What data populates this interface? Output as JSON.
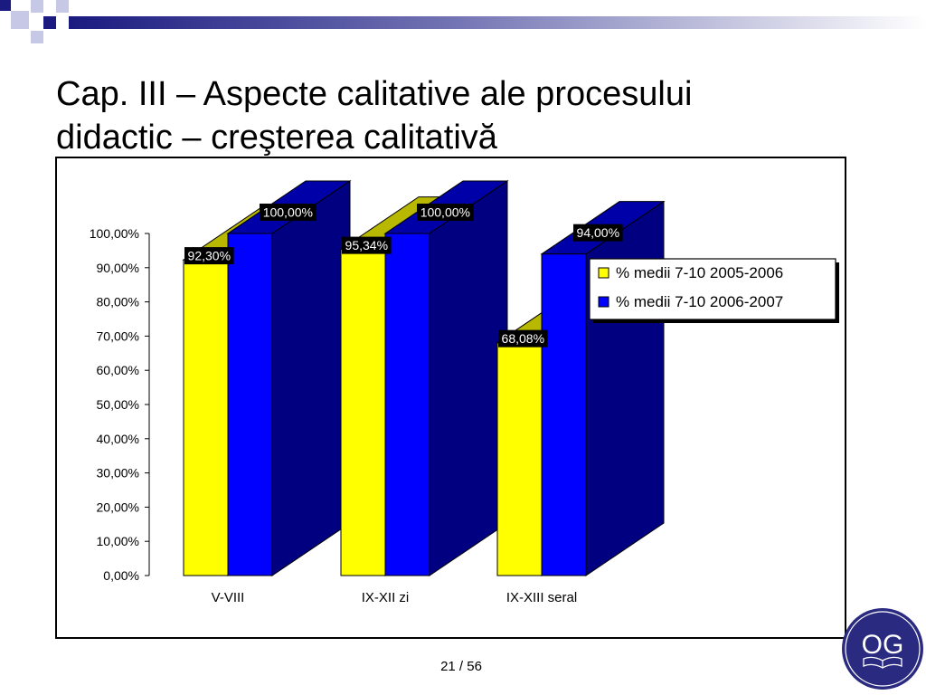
{
  "slide": {
    "title_line1": "Cap. III – Aspecte calitative ale procesului",
    "title_line2": "didactic – creşterea calitativă",
    "page_number": "21 / 56",
    "logo_text": "OG"
  },
  "colors": {
    "navy": "#1a1a80",
    "series1": "#ffff00",
    "series2": "#0000ff",
    "side": "#000080",
    "top1": "#b8b800",
    "top2": "#0000a8",
    "logo_bg": "#2a2b80"
  },
  "chart_data": {
    "type": "bar",
    "categories": [
      "V-VIII",
      "IX-XII zi",
      "IX-XIII seral"
    ],
    "series": [
      {
        "name": "% medii 7-10 2005-2006",
        "values": [
          92.3,
          95.34,
          68.08
        ],
        "labels": [
          "92,30%",
          "95,34%",
          "68,08%"
        ],
        "color": "#ffff00"
      },
      {
        "name": "% medii 7-10 2006-2007",
        "values": [
          100.0,
          100.0,
          94.0
        ],
        "labels": [
          "100,00%",
          "100,00%",
          "94,00%"
        ],
        "color": "#0000ff"
      }
    ],
    "ylim": [
      0,
      100
    ],
    "yticks": [
      "0,00%",
      "10,00%",
      "20,00%",
      "30,00%",
      "40,00%",
      "50,00%",
      "60,00%",
      "70,00%",
      "80,00%",
      "90,00%",
      "100,00%"
    ],
    "legend": "right",
    "grid": false,
    "three_d": true
  }
}
